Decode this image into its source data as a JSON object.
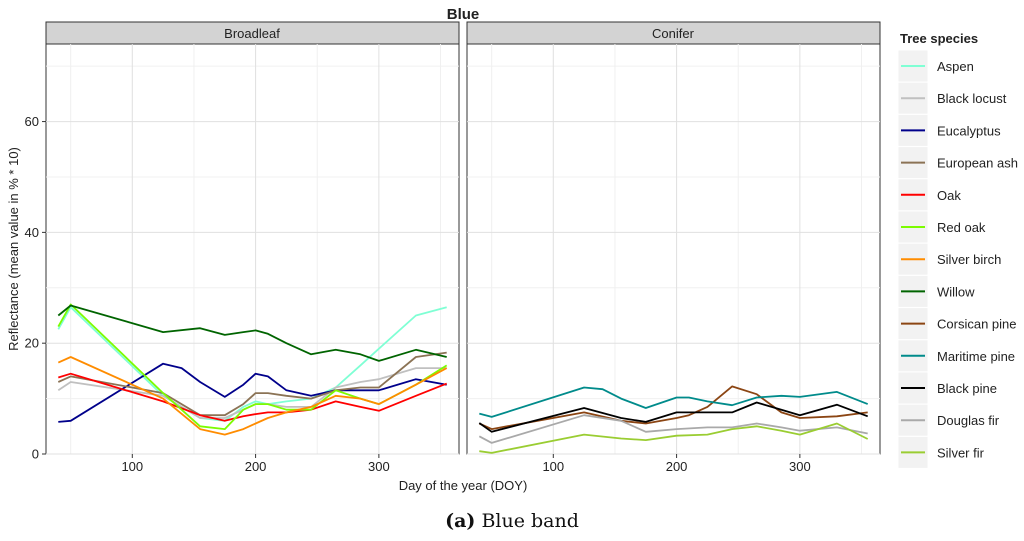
{
  "chart_data": {
    "type": "line",
    "title": "Blue",
    "xlabel": "Day of the year (DOY)",
    "ylabel": "Reflectance (mean value in % * 10)",
    "xlim": [
      30,
      365
    ],
    "ylim": [
      0,
      74
    ],
    "xticks": [
      100,
      200,
      300
    ],
    "yticks": [
      0,
      20,
      40,
      60
    ],
    "grid": true,
    "legend_title": "Tree species",
    "legend_position": "right",
    "panels": [
      {
        "name": "Broadleaf",
        "series": [
          {
            "name": "Aspen",
            "color": "#7fffd4",
            "x": [
              40,
              50,
              125,
              155,
              175,
              190,
              200,
              210,
              225,
              245,
              265,
              285,
              300,
              330,
              355
            ],
            "y": [
              22.5,
              26.5,
              10.5,
              6.5,
              6,
              8.5,
              9.5,
              9,
              9.5,
              10,
              12,
              16,
              19,
              25,
              26.5
            ]
          },
          {
            "name": "Black locust",
            "color": "#c0c0c0",
            "x": [
              40,
              50,
              125,
              155,
              175,
              190,
              200,
              210,
              225,
              245,
              265,
              285,
              300,
              330,
              355
            ],
            "y": [
              11.5,
              13,
              10.5,
              6.5,
              6.5,
              8,
              9,
              9,
              8.5,
              8.5,
              12,
              13,
              13.5,
              15.5,
              15.5
            ]
          },
          {
            "name": "Eucalyptus",
            "color": "#00008b",
            "x": [
              40,
              50,
              125,
              140,
              155,
              175,
              190,
              200,
              210,
              225,
              245,
              265,
              285,
              300,
              330,
              355
            ],
            "y": [
              5.8,
              6,
              16.3,
              15.5,
              13,
              10.3,
              12.5,
              14.5,
              14,
              11.5,
              10.5,
              11.5,
              11.5,
              11.5,
              13.5,
              12.5
            ]
          },
          {
            "name": "European ash",
            "color": "#8b7355",
            "x": [
              40,
              50,
              125,
              155,
              175,
              190,
              200,
              210,
              225,
              245,
              265,
              285,
              300,
              330,
              355
            ],
            "y": [
              13,
              14,
              11,
              7,
              7,
              9,
              11,
              11,
              10.5,
              10,
              11.5,
              12,
              12,
              17.5,
              18.3
            ]
          },
          {
            "name": "Oak",
            "color": "#ff0000",
            "x": [
              40,
              50,
              125,
              155,
              175,
              190,
              200,
              210,
              225,
              245,
              265,
              285,
              300,
              330,
              355
            ],
            "y": [
              13.8,
              14.5,
              9.5,
              7,
              6,
              6.8,
              7.2,
              7.5,
              7.5,
              8,
              9.5,
              8.5,
              7.8,
              10.5,
              12.7
            ]
          },
          {
            "name": "Red oak",
            "color": "#7cfc00",
            "x": [
              40,
              50,
              125,
              155,
              175,
              190,
              200,
              210,
              225,
              245,
              265,
              285,
              300,
              330,
              355
            ],
            "y": [
              23,
              27,
              11,
              5,
              4.5,
              8,
              9,
              9,
              8,
              8,
              11.5,
              10,
              9,
              12.5,
              16
            ]
          },
          {
            "name": "Silver birch",
            "color": "#ff8c00",
            "x": [
              40,
              50,
              125,
              155,
              175,
              190,
              200,
              210,
              225,
              245,
              265,
              285,
              300,
              330,
              355
            ],
            "y": [
              16.5,
              17.5,
              10,
              4.5,
              3.5,
              4.5,
              5.5,
              6.5,
              7.5,
              8.5,
              10.5,
              10,
              9,
              12.5,
              15.5
            ]
          },
          {
            "name": "Willow",
            "color": "#006400",
            "x": [
              40,
              50,
              125,
              155,
              175,
              190,
              200,
              210,
              225,
              245,
              265,
              285,
              300,
              330,
              355
            ],
            "y": [
              25,
              26.8,
              22,
              22.7,
              21.5,
              22,
              22.3,
              21.7,
              20,
              18,
              18.8,
              18,
              16.8,
              18.8,
              17.5
            ]
          }
        ]
      },
      {
        "name": "Conifer",
        "series": [
          {
            "name": "Corsican pine",
            "color": "#8b4513",
            "x": [
              40,
              50,
              125,
              155,
              175,
              200,
              210,
              225,
              245,
              265,
              285,
              300,
              330,
              355
            ],
            "y": [
              5.5,
              4.5,
              7.5,
              6,
              5.5,
              6.5,
              7,
              8.5,
              12.2,
              10.8,
              7.5,
              6.5,
              6.8,
              7.5
            ]
          },
          {
            "name": "Maritime pine",
            "color": "#008b8b",
            "x": [
              40,
              50,
              125,
              140,
              155,
              175,
              200,
              210,
              225,
              245,
              265,
              285,
              300,
              330,
              355
            ],
            "y": [
              7.3,
              6.7,
              12,
              11.7,
              10,
              8.3,
              10.2,
              10.2,
              9.5,
              8.8,
              10.2,
              10.5,
              10.3,
              11.2,
              9
            ]
          },
          {
            "name": "Black pine",
            "color": "#000000",
            "x": [
              40,
              50,
              125,
              155,
              175,
              200,
              210,
              225,
              245,
              265,
              285,
              300,
              330,
              355
            ],
            "y": [
              5.6,
              4,
              8.3,
              6.5,
              5.8,
              7.5,
              7.5,
              7.5,
              7.5,
              9.3,
              8,
              7,
              8.9,
              6.8
            ]
          },
          {
            "name": "Douglas fir",
            "color": "#a9a9a9",
            "x": [
              40,
              50,
              125,
              155,
              175,
              200,
              225,
              245,
              265,
              285,
              300,
              330,
              355
            ],
            "y": [
              3.2,
              2,
              7,
              6,
              4,
              4.5,
              4.8,
              4.8,
              5.5,
              4.8,
              4.2,
              4.8,
              3.7
            ]
          },
          {
            "name": "Silver fir",
            "color": "#9acd32",
            "x": [
              40,
              50,
              125,
              155,
              175,
              200,
              225,
              245,
              265,
              285,
              300,
              330,
              355
            ],
            "y": [
              0.5,
              0.2,
              3.5,
              2.8,
              2.5,
              3.3,
              3.5,
              4.5,
              5,
              4.2,
              3.5,
              5.5,
              2.7
            ]
          }
        ]
      }
    ]
  },
  "caption": {
    "label": "(a)",
    "text": "Blue band"
  }
}
